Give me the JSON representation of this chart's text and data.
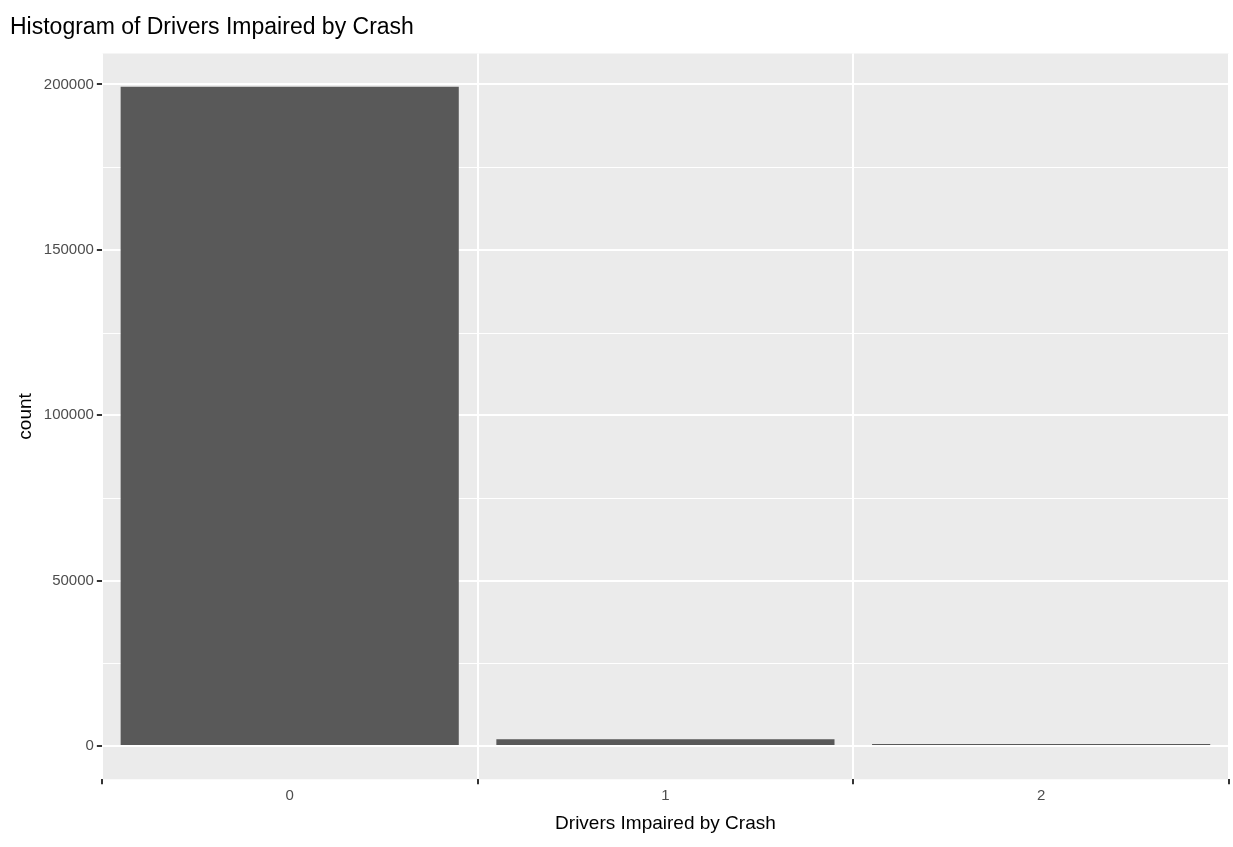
{
  "chart_data": {
    "type": "bar",
    "title": "Histogram of Drivers Impaired by Crash",
    "xlabel": "Drivers Impaired by Crash",
    "ylabel": "count",
    "categories": [
      "0",
      "1",
      "2"
    ],
    "values": [
      199300,
      2100,
      300
    ],
    "color": "#595959",
    "ylim": [
      -10000,
      209300
    ],
    "yticks": [
      0,
      50000,
      100000,
      150000,
      200000
    ],
    "grid": true,
    "legend": false
  }
}
